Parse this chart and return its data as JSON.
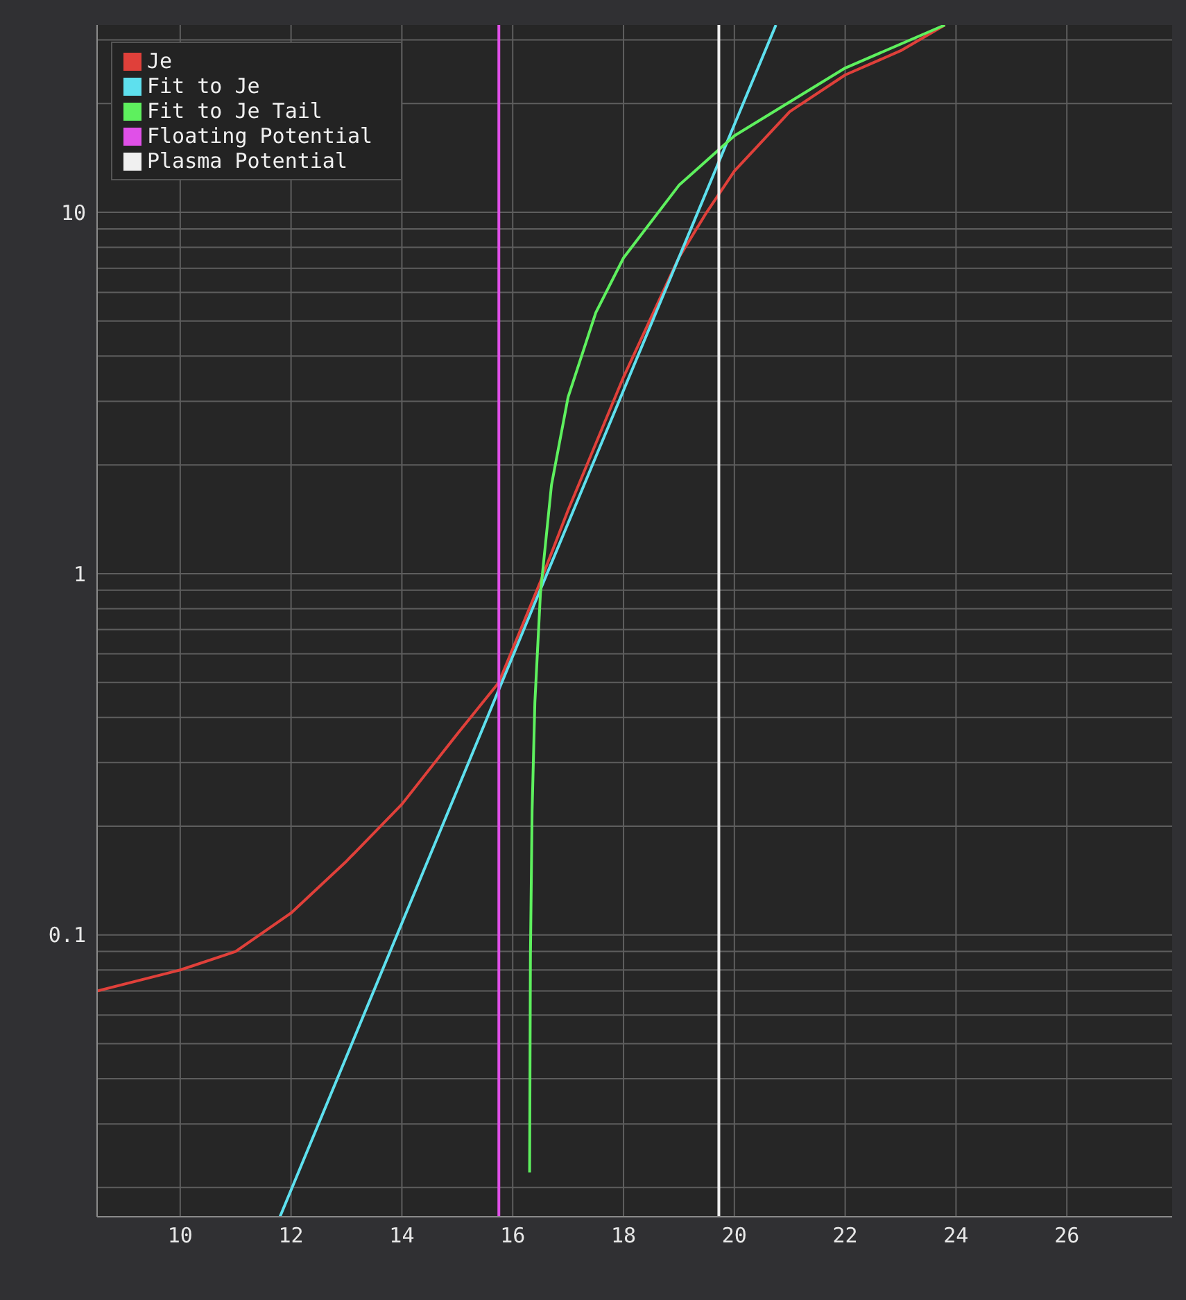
{
  "chart_data": {
    "type": "line",
    "log": "y",
    "grid": true,
    "legend": "top left",
    "marker": "none",
    "line_style": "solid",
    "xlim": [
      8.5,
      27.9
    ],
    "xticks": [
      10,
      12,
      14,
      16,
      18,
      20,
      22,
      24,
      26
    ],
    "ylim": [
      0.0166,
      33
    ],
    "yticks": [
      {
        "value": 0.02,
        "label": null
      },
      {
        "value": 0.03,
        "label": null
      },
      {
        "value": 0.04,
        "label": null
      },
      {
        "value": 0.05,
        "label": null
      },
      {
        "value": 0.06,
        "label": null
      },
      {
        "value": 0.07,
        "label": null
      },
      {
        "value": 0.08,
        "label": null
      },
      {
        "value": 0.09,
        "label": null
      },
      0.1,
      {
        "value": 0.2,
        "label": null
      },
      {
        "value": 0.3,
        "label": null
      },
      {
        "value": 0.4,
        "label": null
      },
      {
        "value": 0.5,
        "label": null
      },
      {
        "value": 0.6,
        "label": null
      },
      {
        "value": 0.7,
        "label": null
      },
      {
        "value": 0.8,
        "label": null
      },
      {
        "value": 0.9,
        "label": null
      },
      1,
      {
        "value": 2,
        "label": null
      },
      {
        "value": 3,
        "label": null
      },
      {
        "value": 4,
        "label": null
      },
      {
        "value": 5,
        "label": null
      },
      {
        "value": 6,
        "label": null
      },
      {
        "value": 7,
        "label": null
      },
      {
        "value": 8,
        "label": null
      },
      {
        "value": 9,
        "label": null
      },
      10,
      {
        "value": 20,
        "label": null
      },
      {
        "value": 30,
        "label": null
      }
    ],
    "series": [
      {
        "name": "Je",
        "color": "#e0403a",
        "x": [
          8.5,
          10,
          11,
          12,
          13,
          14,
          15,
          15.75,
          16.5,
          17,
          18,
          19,
          19.5,
          20,
          21,
          22,
          23,
          23.8
        ],
        "values": [
          0.07,
          0.08,
          0.09,
          0.115,
          0.16,
          0.23,
          0.36,
          0.5,
          0.95,
          1.5,
          3.5,
          7.5,
          10,
          13,
          19,
          24,
          28,
          33
        ]
      },
      {
        "name": "Fit to Je",
        "color": "#5ee0ee",
        "x": [
          11.8,
          16.4,
          20.75
        ],
        "values": [
          0.0166,
          0.83,
          33
        ]
      },
      {
        "name": "Fit to Je Tail",
        "color": "#5ef05e",
        "x": [
          16.305,
          16.32,
          16.35,
          16.4,
          16.5,
          16.7,
          17,
          17.5,
          18,
          19,
          20,
          22,
          23.8
        ],
        "values": [
          0.022,
          0.088,
          0.22,
          0.44,
          0.88,
          1.76,
          3.08,
          5.28,
          7.48,
          11.88,
          16.28,
          25.08,
          33
        ]
      },
      {
        "name": "Floating Potential",
        "color": "#e050e8",
        "x": [
          15.75,
          15.75
        ],
        "values": [
          0.0166,
          33
        ]
      },
      {
        "name": "Plasma Potential",
        "color": "#f0f0f0",
        "x": [
          19.72,
          19.72
        ],
        "values": [
          0.0166,
          33
        ]
      }
    ]
  }
}
